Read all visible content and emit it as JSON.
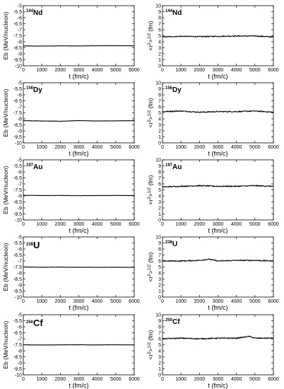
{
  "chart_data": [
    {
      "type": "line",
      "nucleus": {
        "mass": "144",
        "symbol": "Nd"
      },
      "xlabel": "t  (fm/c)",
      "ylabel": "Eb (MeV/nucleon)",
      "x": [
        0,
        1000,
        2000,
        3000,
        4000,
        5000,
        6000
      ],
      "y": [
        -8.35,
        -8.36,
        -8.34,
        -8.35,
        -8.33,
        -8.33,
        -8.34
      ],
      "xlim": [
        0,
        6000
      ],
      "ylim": [
        -10,
        -5
      ],
      "xticks": [
        "0",
        "1000",
        "2000",
        "3000",
        "4000",
        "5000",
        "6000"
      ],
      "yticks": [
        "-10",
        "-9.5",
        "-9",
        "-8.5",
        "-8",
        "-7.5",
        "-7",
        "-6.5",
        "-6",
        "-5.5",
        "-5"
      ]
    },
    {
      "type": "line",
      "nucleus": {
        "mass": "144",
        "symbol": "Nd"
      },
      "xlabel": "t  (fm/c)",
      "ylabel": "<r^2>^1/2 (fm)",
      "x": [
        0,
        1000,
        2000,
        3000,
        4000,
        5000,
        6000
      ],
      "y": [
        4.8,
        4.9,
        4.85,
        4.9,
        4.95,
        4.95,
        4.8
      ],
      "xlim": [
        0,
        6000
      ],
      "ylim": [
        0,
        10
      ],
      "xticks": [
        "0",
        "1000",
        "2000",
        "3000",
        "4000",
        "5000",
        "6000"
      ],
      "yticks": [
        "0",
        "1",
        "2",
        "3",
        "4",
        "5",
        "6",
        "7",
        "8",
        "9",
        "10"
      ]
    },
    {
      "type": "line",
      "nucleus": {
        "mass": "156",
        "symbol": "Dy"
      },
      "xlabel": "t  (fm/c)",
      "ylabel": "Eb (MeV/nucleon)",
      "x": [
        0,
        1000,
        2000,
        3000,
        4000,
        5000,
        6000
      ],
      "y": [
        -8.15,
        -8.18,
        -8.2,
        -8.15,
        -8.18,
        -8.17,
        -8.15
      ],
      "xlim": [
        0,
        6000
      ],
      "ylim": [
        -10,
        -5
      ],
      "xticks": [
        "0",
        "1000",
        "2000",
        "3000",
        "4000",
        "5000",
        "6000"
      ],
      "yticks": [
        "-10",
        "-9.5",
        "-9",
        "-8.5",
        "-8",
        "-7.5",
        "-7",
        "-6.5",
        "-6",
        "-5.5",
        "-5"
      ]
    },
    {
      "type": "line",
      "nucleus": {
        "mass": "156",
        "symbol": "Dy"
      },
      "xlabel": "t  (fm/c)",
      "ylabel": "<r^2>^1/2 (fm)",
      "x": [
        0,
        1000,
        2000,
        3000,
        4000,
        5000,
        6000
      ],
      "y": [
        5.2,
        5.3,
        5.1,
        5.2,
        5.2,
        5.3,
        5.1
      ],
      "xlim": [
        0,
        6000
      ],
      "ylim": [
        0,
        10
      ],
      "xticks": [
        "0",
        "1000",
        "2000",
        "3000",
        "4000",
        "5000",
        "6000"
      ],
      "yticks": [
        "0",
        "1",
        "2",
        "3",
        "4",
        "5",
        "6",
        "7",
        "8",
        "9",
        "10"
      ]
    },
    {
      "type": "line",
      "nucleus": {
        "mass": "197",
        "symbol": "Au"
      },
      "xlabel": "t  (fm/c)",
      "ylabel": "Eb (MeV/nucleon)",
      "x": [
        0,
        1000,
        2000,
        3000,
        4000,
        5000,
        6000
      ],
      "y": [
        -7.95,
        -7.97,
        -7.96,
        -7.98,
        -7.97,
        -7.96,
        -7.97
      ],
      "xlim": [
        0,
        6000
      ],
      "ylim": [
        -10,
        -5
      ],
      "xticks": [
        "0",
        "1000",
        "2000",
        "3000",
        "4000",
        "5000",
        "6000"
      ],
      "yticks": [
        "-10",
        "-9.5",
        "-9",
        "-8.5",
        "-8",
        "-7.5",
        "-7",
        "-6.5",
        "-6",
        "-5.5",
        "-5"
      ]
    },
    {
      "type": "line",
      "nucleus": {
        "mass": "197",
        "symbol": "Au"
      },
      "xlabel": "t  (fm/c)",
      "ylabel": "<r^2>^1/2 (fm)",
      "x": [
        0,
        1000,
        2000,
        3000,
        4000,
        5000,
        6000
      ],
      "y": [
        5.5,
        5.6,
        5.7,
        5.6,
        5.6,
        5.7,
        5.6
      ],
      "xlim": [
        0,
        6000
      ],
      "ylim": [
        0,
        10
      ],
      "xticks": [
        "0",
        "1000",
        "2000",
        "3000",
        "4000",
        "5000",
        "6000"
      ],
      "yticks": [
        "0",
        "1",
        "2",
        "3",
        "4",
        "5",
        "6",
        "7",
        "8",
        "9",
        "10"
      ]
    },
    {
      "type": "line",
      "nucleus": {
        "mass": "238",
        "symbol": "U"
      },
      "xlabel": "t  (fm/c)",
      "ylabel": "Eb (MeV/nucleon)",
      "x": [
        0,
        1000,
        2000,
        3000,
        4000,
        5000,
        6000
      ],
      "y": [
        -7.5,
        -7.52,
        -7.51,
        -7.52,
        -7.53,
        -7.52,
        -7.53
      ],
      "xlim": [
        0,
        6000
      ],
      "ylim": [
        -10,
        -5
      ],
      "xticks": [
        "0",
        "1000",
        "2000",
        "3000",
        "4000",
        "5000",
        "6000"
      ],
      "yticks": [
        "-10",
        "-9.5",
        "-9",
        "-8.5",
        "-8",
        "-7.5",
        "-7",
        "-6.5",
        "-6",
        "-5.5",
        "-5"
      ]
    },
    {
      "type": "line",
      "nucleus": {
        "mass": "238",
        "symbol": "U"
      },
      "xlabel": "t  (fm/c)",
      "ylabel": "<r^2>^1/2 (fm)",
      "x": [
        0,
        1000,
        2000,
        2500,
        3000,
        4000,
        5000,
        6000
      ],
      "y": [
        6.0,
        6.0,
        6.1,
        6.3,
        6.0,
        6.1,
        6.1,
        6.0
      ],
      "xlim": [
        0,
        6000
      ],
      "ylim": [
        0,
        10
      ],
      "xticks": [
        "0",
        "1000",
        "2000",
        "3000",
        "4000",
        "5000",
        "6000"
      ],
      "yticks": [
        "0",
        "1",
        "2",
        "3",
        "4",
        "5",
        "6",
        "7",
        "8",
        "9",
        "10"
      ]
    },
    {
      "type": "line",
      "nucleus": {
        "mass": "250",
        "symbol": "Cf"
      },
      "xlabel": "t  (fm/c)",
      "ylabel": "Eb (MeV/nucleon)",
      "x": [
        0,
        1000,
        2000,
        3000,
        4000,
        5000,
        6000
      ],
      "y": [
        -7.5,
        -7.52,
        -7.5,
        -7.5,
        -7.51,
        -7.5,
        -7.51
      ],
      "xlim": [
        0,
        6000
      ],
      "ylim": [
        -10,
        -5
      ],
      "xticks": [
        "0",
        "1000",
        "2000",
        "3000",
        "4000",
        "5000",
        "6000"
      ],
      "yticks": [
        "-10",
        "-9.5",
        "-9",
        "-8.5",
        "-8",
        "-7.5",
        "-7",
        "-6.5",
        "-6",
        "-5.5",
        "-5"
      ]
    },
    {
      "type": "line",
      "nucleus": {
        "mass": "250",
        "symbol": "Cf"
      },
      "xlabel": "t  (fm/c)",
      "ylabel": "<r^2>^1/2 (fm)",
      "x": [
        0,
        1000,
        2000,
        3000,
        4000,
        4700,
        5000,
        6000
      ],
      "y": [
        6.0,
        6.1,
        6.0,
        6.1,
        6.1,
        6.4,
        6.1,
        6.1
      ],
      "xlim": [
        0,
        6000
      ],
      "ylim": [
        0,
        10
      ],
      "xticks": [
        "0",
        "1000",
        "2000",
        "3000",
        "4000",
        "5000",
        "6000"
      ],
      "yticks": [
        "0",
        "1",
        "2",
        "3",
        "4",
        "5",
        "6",
        "7",
        "8",
        "9",
        "10"
      ]
    }
  ]
}
